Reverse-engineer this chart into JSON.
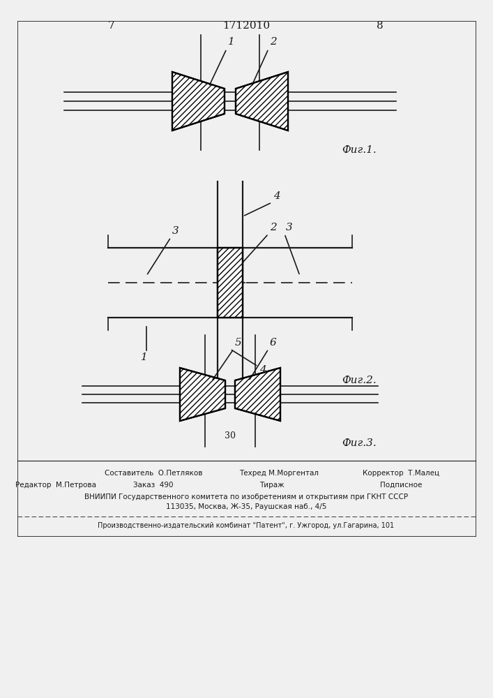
{
  "page_number_left": "7",
  "page_number_right": "8",
  "patent_number": "1712010",
  "fig1_label": "Фиг.1.",
  "fig2_label": "Фиг.2.",
  "fig3_label": "Фиг.3.",
  "footer_line1": "Составитель  О.Петляков",
  "footer_line2": "Техред М.Моргентал",
  "footer_line3": "Корректор  Т.Малец",
  "footer_editor": "Редактор  М.Петрова",
  "footer_order": "Заказ  490",
  "footer_tirazh": "Тираж",
  "footer_podpisnoe": "Подписное",
  "footer_vniiipi": "ВНИИПИ Государственного комитета по изобретениям и открытиям при ГКНТ СССР",
  "footer_address": "113035, Москва, Ж-35, Раушская наб., 4/5",
  "footer_factory": "Производственно-издательский комбинат \"Патент\", г. Ужгород, ул.Гагарина, 101",
  "bg_color": "#f0f0f0",
  "line_color": "#1a1a1a"
}
